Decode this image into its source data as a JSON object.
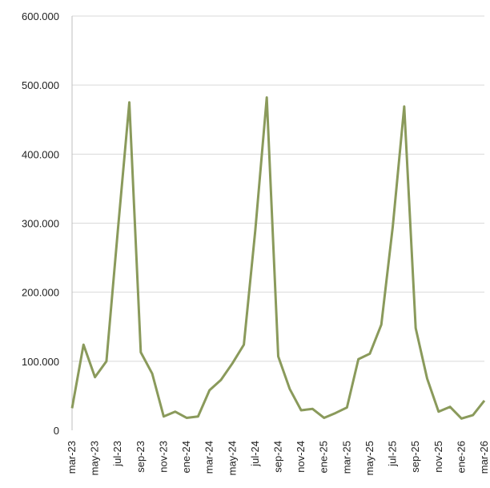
{
  "chart_data": {
    "type": "line",
    "title": "",
    "xlabel": "",
    "ylabel": "",
    "ylim": [
      0,
      600000
    ],
    "grid": "horizontal",
    "legend": "none",
    "y_ticks": [
      0,
      100000,
      200000,
      300000,
      400000,
      500000,
      600000
    ],
    "y_tick_labels": [
      "0",
      "100.000",
      "200.000",
      "300.000",
      "400.000",
      "500.000",
      "600.000"
    ],
    "x": [
      "mar-23",
      "abr-23",
      "may-23",
      "jun-23",
      "jul-23",
      "ago-23",
      "sep-23",
      "oct-23",
      "nov-23",
      "dic-23",
      "ene-24",
      "feb-24",
      "mar-24",
      "abr-24",
      "may-24",
      "jun-24",
      "jul-24",
      "ago-24",
      "sep-24",
      "oct-24",
      "nov-24",
      "dic-24",
      "ene-25",
      "feb-25",
      "mar-25",
      "abr-25",
      "may-25",
      "jun-25",
      "jul-25",
      "ago-25",
      "sep-25",
      "oct-25",
      "nov-25",
      "dic-25",
      "ene-26",
      "feb-26",
      "mar-26"
    ],
    "x_tick_labels": [
      "mar-23",
      "may-23",
      "jul-23",
      "sep-23",
      "nov-23",
      "ene-24",
      "mar-24",
      "may-24",
      "jul-24",
      "sep-24",
      "nov-24",
      "ene-25",
      "mar-25",
      "may-25",
      "jul-25",
      "sep-25",
      "nov-25",
      "ene-26",
      "mar-26"
    ],
    "series": [
      {
        "color": "#8a9a5b",
        "values": [
          32000,
          124000,
          77000,
          100000,
          290000,
          475000,
          113000,
          82000,
          20000,
          27000,
          18000,
          20000,
          58000,
          73000,
          97000,
          124000,
          290000,
          482000,
          107000,
          60000,
          29000,
          31000,
          18000,
          25000,
          33000,
          103000,
          111000,
          153000,
          295000,
          469000,
          148000,
          75000,
          27000,
          34000,
          17000,
          22000,
          43000
        ]
      }
    ]
  }
}
